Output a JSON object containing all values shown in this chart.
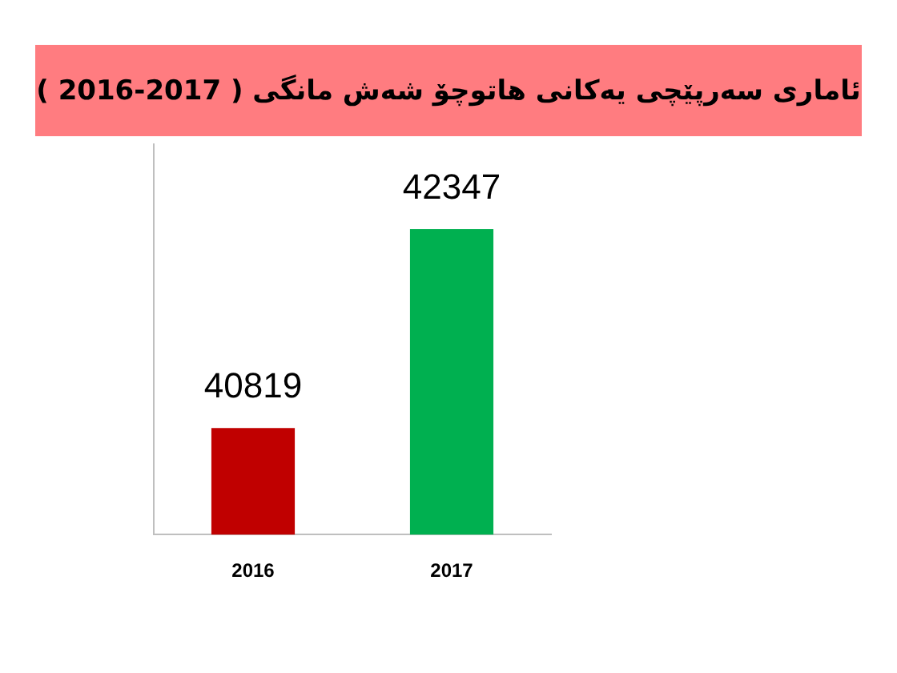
{
  "chart_data": {
    "type": "bar",
    "title": "ئاماری سەرپێچی یەکانی هاتوچۆ شەش مانگی ( 2017-2016 )",
    "categories": [
      "2016",
      "2017"
    ],
    "values": [
      40819,
      42347
    ],
    "colors": [
      "#c00000",
      "#00b050"
    ],
    "ylim": [
      40000,
      43000
    ],
    "tick_labels": "x",
    "grid": false,
    "legend": false,
    "data_labels": true
  }
}
